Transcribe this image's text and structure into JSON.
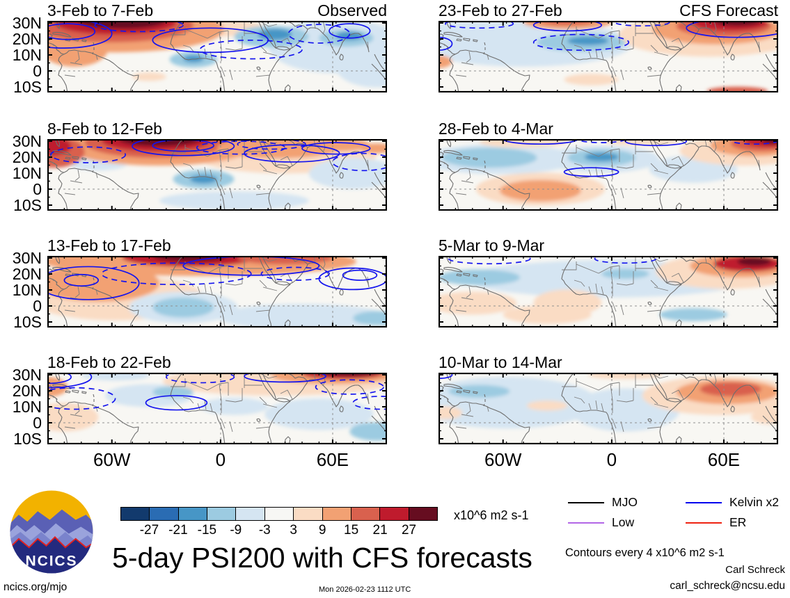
{
  "figure": {
    "title": "5-day PSI200 with CFS forecasts",
    "timestamp": "Mon 2026-02-23 1112 UTC",
    "url_label": "ncics.org/mjo",
    "credit": "Carl Schreck",
    "email": "carl_schreck@ncsu.edu",
    "contour_note": "Contours every 4 x10^6 m2 s-1",
    "unit_label": "x10^6 m2 s-1",
    "logo_text": "NCICS"
  },
  "chart_data": {
    "type": "heatmap",
    "description": "Eight lat-lon map panels (4 rows x 2 cols) of 5-day mean PSI200 anomalies; left column observed pentads, right column CFS forecast pentads. Shading every 6 x10^6 m2 s-1, blue contours are Kelvin-filtered anomalies.",
    "y_tick_labels": [
      "30N",
      "20N",
      "10N",
      "0",
      "10S"
    ],
    "x_tick_labels": [
      "60W",
      "0",
      "60E"
    ],
    "x_tick_pos": [
      0.19,
      0.51,
      0.84
    ],
    "colorbar": {
      "levels": [
        -27,
        -21,
        -15,
        -9,
        -3,
        3,
        9,
        15,
        21,
        27
      ],
      "colors": [
        "#123a6d",
        "#2a6cb3",
        "#4796c6",
        "#9ccbe1",
        "#d5e5f2",
        "#f7f7f4",
        "#fadcc4",
        "#f2a173",
        "#d9614e",
        "#bf1b2d",
        "#660d20"
      ]
    },
    "contour_color": "#1414ee",
    "legend": [
      {
        "label": "MJO",
        "color": "#000000"
      },
      {
        "label": "Kelvin x2",
        "color": "#0000ee"
      },
      {
        "label": "Low",
        "color": "#b266e6"
      },
      {
        "label": "ER",
        "color": "#ee2211"
      }
    ],
    "panels": [
      {
        "title": "3-Feb to 7-Feb",
        "corner_label": "Observed",
        "col": 0,
        "row": 0,
        "fills": [
          [
            50,
            10,
            14,
            12,
            6
          ],
          [
            85,
            35,
            20,
            38,
            4
          ],
          [
            97,
            65,
            12,
            28,
            4
          ],
          [
            20,
            12,
            32,
            32,
            7
          ],
          [
            8,
            38,
            10,
            26,
            7
          ],
          [
            19,
            6,
            24,
            24,
            8
          ],
          [
            20,
            2,
            18,
            17,
            9
          ],
          [
            22,
            0,
            13,
            11,
            10
          ],
          [
            66,
            22,
            11,
            15,
            3
          ],
          [
            67,
            19,
            5,
            8,
            2
          ],
          [
            43,
            54,
            7,
            11,
            3
          ],
          [
            43,
            53,
            3,
            5,
            2
          ],
          [
            88,
            24,
            8,
            12,
            3
          ],
          [
            89,
            21,
            4,
            6,
            2
          ],
          [
            30,
            78,
            5,
            6,
            6
          ]
        ],
        "contours": [
          [
            5,
            18,
            14,
            20,
            "s"
          ],
          [
            6,
            15,
            8,
            11,
            "s"
          ],
          [
            27,
            6,
            13,
            9,
            "d"
          ],
          [
            48,
            27,
            17,
            17,
            "s"
          ],
          [
            60,
            40,
            15,
            13,
            "d"
          ],
          [
            80,
            18,
            9,
            13,
            "d"
          ],
          [
            89,
            14,
            6,
            10,
            "s"
          ]
        ]
      },
      {
        "title": "23-Feb to 27-Feb",
        "corner_label": "CFS Forecast",
        "col": 1,
        "row": 0,
        "fills": [
          [
            25,
            32,
            32,
            32,
            4
          ],
          [
            10,
            10,
            12,
            9,
            4
          ],
          [
            80,
            20,
            27,
            30,
            6
          ],
          [
            38,
            2,
            13,
            10,
            7
          ],
          [
            38,
            0,
            8,
            6,
            8
          ],
          [
            42,
            30,
            13,
            13,
            3
          ],
          [
            44,
            28,
            6,
            6,
            2
          ],
          [
            82,
            12,
            19,
            21,
            7
          ],
          [
            84,
            7,
            14,
            15,
            8
          ],
          [
            86,
            3,
            11,
            11,
            9
          ],
          [
            88,
            0,
            7,
            7,
            10
          ],
          [
            0,
            57,
            4,
            9,
            7
          ],
          [
            45,
            82,
            8,
            8,
            6
          ],
          [
            88,
            98,
            9,
            6,
            8
          ]
        ],
        "contours": [
          [
            38,
            6,
            10,
            8,
            "s"
          ],
          [
            42,
            30,
            14,
            11,
            "d"
          ],
          [
            12,
            4,
            10,
            6,
            "d"
          ],
          [
            60,
            2,
            8,
            5,
            "d"
          ],
          [
            88,
            10,
            15,
            13,
            "s"
          ],
          [
            0,
            32,
            4,
            9,
            "s"
          ]
        ]
      },
      {
        "title": "8-Feb to 12-Feb",
        "corner_label": "",
        "col": 0,
        "row": 1,
        "fills": [
          [
            70,
            22,
            27,
            26,
            6
          ],
          [
            15,
            32,
            9,
            12,
            4
          ],
          [
            55,
            86,
            22,
            13,
            4
          ],
          [
            90,
            48,
            13,
            22,
            4
          ],
          [
            33,
            10,
            28,
            27,
            7
          ],
          [
            2,
            18,
            9,
            22,
            8
          ],
          [
            32,
            5,
            21,
            21,
            8
          ],
          [
            1,
            10,
            6,
            13,
            9
          ],
          [
            32,
            2,
            16,
            15,
            9
          ],
          [
            33,
            0,
            12,
            10,
            10
          ],
          [
            68,
            12,
            18,
            15,
            7
          ],
          [
            86,
            8,
            9,
            9,
            7
          ],
          [
            97,
            13,
            5,
            7,
            7
          ],
          [
            46,
            56,
            9,
            13,
            3
          ],
          [
            46,
            56,
            4,
            6,
            2
          ]
        ],
        "contours": [
          [
            40,
            10,
            15,
            13,
            "s"
          ],
          [
            40,
            9,
            9,
            8,
            "s"
          ],
          [
            72,
            20,
            14,
            12,
            "s"
          ],
          [
            85,
            13,
            10,
            8,
            "s"
          ],
          [
            12,
            22,
            11,
            11,
            "d"
          ],
          [
            57,
            12,
            13,
            9,
            "d"
          ],
          [
            66,
            7,
            10,
            7,
            "d"
          ],
          [
            93,
            32,
            9,
            12,
            "d"
          ]
        ]
      },
      {
        "title": "28-Feb to 4-Mar",
        "corner_label": "",
        "col": 1,
        "row": 1,
        "fills": [
          [
            18,
            28,
            23,
            21,
            4
          ],
          [
            48,
            28,
            17,
            19,
            4
          ],
          [
            75,
            42,
            13,
            19,
            4
          ],
          [
            15,
            26,
            14,
            14,
            3
          ],
          [
            48,
            26,
            10,
            12,
            3
          ],
          [
            48,
            25,
            5,
            6,
            2
          ],
          [
            30,
            70,
            19,
            23,
            6
          ],
          [
            30,
            72,
            12,
            15,
            7
          ],
          [
            25,
            4,
            13,
            8,
            6
          ],
          [
            60,
            3,
            11,
            6,
            6
          ],
          [
            90,
            16,
            19,
            21,
            6
          ],
          [
            93,
            9,
            13,
            15,
            7
          ],
          [
            95,
            6,
            9,
            11,
            8
          ],
          [
            97,
            3,
            7,
            8,
            9
          ],
          [
            99,
            2,
            4,
            5,
            10
          ]
        ],
        "contours": [
          [
            30,
            0,
            11,
            7,
            "s"
          ],
          [
            48,
            0,
            7,
            5,
            "d"
          ],
          [
            64,
            3,
            9,
            6,
            "s"
          ],
          [
            45,
            46,
            8,
            6,
            "s"
          ],
          [
            93,
            2,
            7,
            5,
            "d"
          ]
        ]
      },
      {
        "title": "13-Feb to 17-Feb",
        "corner_label": "",
        "col": 0,
        "row": 2,
        "fills": [
          [
            20,
            58,
            26,
            32,
            6
          ],
          [
            45,
            8,
            46,
            20,
            7
          ],
          [
            15,
            38,
            18,
            26,
            7
          ],
          [
            42,
            2,
            20,
            13,
            9
          ],
          [
            42,
            0,
            11,
            8,
            10
          ],
          [
            70,
            3,
            14,
            9,
            8
          ],
          [
            40,
            72,
            16,
            22,
            4
          ],
          [
            40,
            72,
            9,
            14,
            3
          ],
          [
            75,
            85,
            25,
            18,
            4
          ],
          [
            97,
            87,
            7,
            10,
            3
          ]
        ],
        "contours": [
          [
            12,
            38,
            15,
            23,
            "s"
          ],
          [
            10,
            34,
            5,
            8,
            "s"
          ],
          [
            38,
            25,
            22,
            15,
            "d"
          ],
          [
            60,
            14,
            20,
            13,
            "s"
          ],
          [
            73,
            25,
            10,
            9,
            "d"
          ],
          [
            90,
            32,
            10,
            15,
            "s"
          ],
          [
            92,
            27,
            5,
            7,
            "s"
          ]
        ]
      },
      {
        "title": "5-Mar to 9-Mar",
        "corner_label": "",
        "col": 1,
        "row": 2,
        "fills": [
          [
            50,
            32,
            42,
            26,
            4
          ],
          [
            12,
            30,
            12,
            11,
            3
          ],
          [
            55,
            25,
            7,
            7,
            3
          ],
          [
            10,
            66,
            13,
            16,
            6
          ],
          [
            32,
            82,
            13,
            13,
            6
          ],
          [
            38,
            65,
            10,
            18,
            6
          ],
          [
            85,
            22,
            21,
            24,
            6
          ],
          [
            89,
            14,
            15,
            16,
            7
          ],
          [
            91,
            11,
            10,
            11,
            9
          ],
          [
            93,
            8,
            5,
            6,
            10
          ],
          [
            75,
            82,
            10,
            9,
            3
          ]
        ],
        "contours": [
          [
            15,
            4,
            12,
            7,
            "d"
          ],
          [
            55,
            4,
            9,
            6,
            "d"
          ]
        ]
      },
      {
        "title": "18-Feb to 22-Feb",
        "corner_label": "",
        "col": 0,
        "row": 3,
        "fills": [
          [
            68,
            12,
            34,
            20,
            6
          ],
          [
            5,
            62,
            10,
            20,
            6
          ],
          [
            20,
            4,
            10,
            7,
            4
          ],
          [
            84,
            4,
            18,
            12,
            7
          ],
          [
            87,
            1,
            12,
            8,
            9
          ],
          [
            89,
            0,
            8,
            5,
            10
          ],
          [
            0,
            20,
            6,
            14,
            7
          ],
          [
            30,
            32,
            13,
            16,
            4
          ],
          [
            37,
            27,
            6,
            8,
            3
          ],
          [
            55,
            47,
            10,
            12,
            4
          ],
          [
            80,
            58,
            16,
            22,
            4
          ],
          [
            97,
            82,
            8,
            13,
            3
          ]
        ],
        "contours": [
          [
            0,
            6,
            13,
            15,
            "s"
          ],
          [
            0,
            6,
            7,
            9,
            "s"
          ],
          [
            8,
            36,
            12,
            15,
            "d"
          ],
          [
            45,
            6,
            10,
            8,
            "d"
          ],
          [
            70,
            5,
            12,
            8,
            "s"
          ],
          [
            38,
            42,
            9,
            10,
            "s"
          ],
          [
            89,
            20,
            10,
            10,
            "d"
          ],
          [
            98,
            42,
            8,
            9,
            "d"
          ]
        ]
      },
      {
        "title": "10-Mar to 14-Mar",
        "corner_label": "",
        "col": 1,
        "row": 3,
        "fills": [
          [
            20,
            42,
            27,
            36,
            4
          ],
          [
            55,
            52,
            16,
            30,
            4
          ],
          [
            12,
            26,
            9,
            9,
            3
          ],
          [
            32,
            46,
            6,
            7,
            6
          ],
          [
            2,
            56,
            5,
            9,
            6
          ],
          [
            55,
            3,
            11,
            6,
            6
          ],
          [
            98,
            62,
            6,
            10,
            6
          ],
          [
            83,
            32,
            23,
            27,
            6
          ],
          [
            85,
            27,
            15,
            17,
            7
          ],
          [
            86,
            23,
            9,
            10,
            8
          ]
        ],
        "contours": [
          [
            0,
            3,
            4,
            5,
            "s"
          ]
        ]
      }
    ]
  }
}
